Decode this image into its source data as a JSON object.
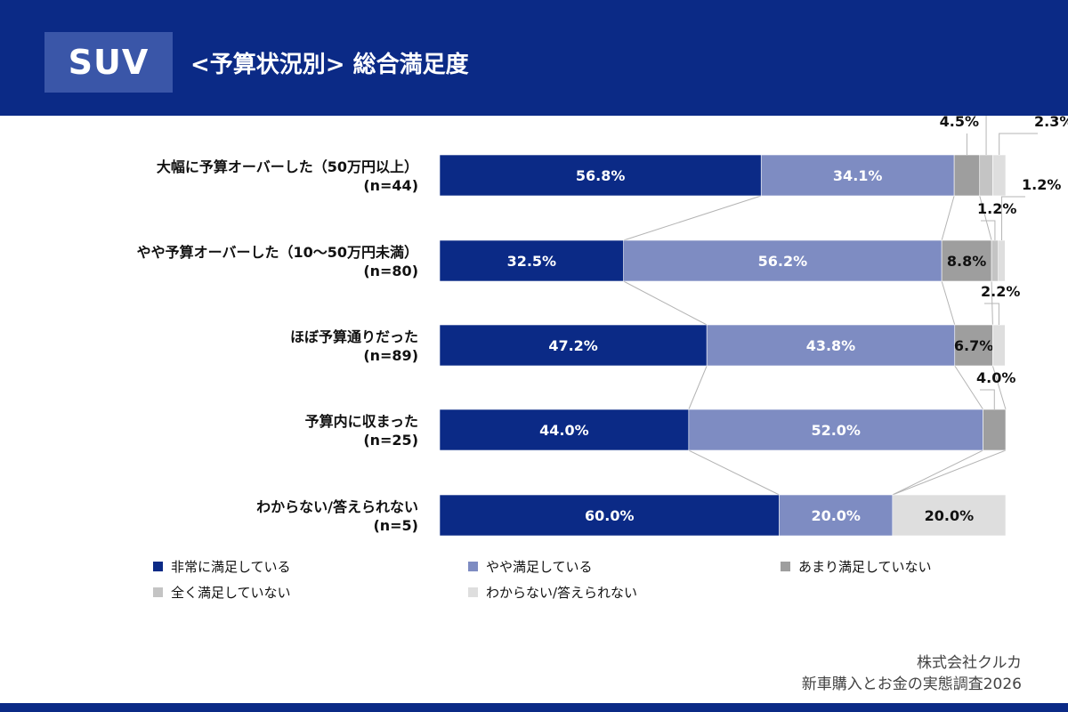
{
  "header": {
    "badge": "SUV",
    "title": "<予算状況別> 総合満足度"
  },
  "colors": {
    "header_bg": "#0b2a86",
    "series": [
      "#0b2a86",
      "#7e8cc2",
      "#9e9e9e",
      "#c4c4c4",
      "#dedede"
    ]
  },
  "chart_data": {
    "type": "bar",
    "orientation": "horizontal",
    "stacked": true,
    "percent": true,
    "title": "<予算状況別> 総合満足度",
    "categories": [
      "大幅に予算オーバーした（50万円以上）",
      "やや予算オーバーした（10〜50万円未満）",
      "ほぼ予算通りだった",
      "予算内に収まった",
      "わからない/答えられない"
    ],
    "sample_sizes": [
      "(n=44)",
      "(n=80)",
      "(n=89)",
      "(n=25)",
      "(n=5)"
    ],
    "series": [
      {
        "name": "非常に満足している",
        "values": [
          56.8,
          32.5,
          47.2,
          44.0,
          60.0
        ],
        "labels": [
          "56.8%",
          "32.5%",
          "47.2%",
          "44.0%",
          "60.0%"
        ]
      },
      {
        "name": "やや満足している",
        "values": [
          34.1,
          56.2,
          43.8,
          52.0,
          20.0
        ],
        "labels": [
          "34.1%",
          "56.2%",
          "43.8%",
          "52.0%",
          "20.0%"
        ]
      },
      {
        "name": "あまり満足していない",
        "values": [
          4.5,
          8.8,
          6.7,
          4.0,
          0
        ],
        "labels": [
          "4.5%",
          "8.8%",
          "6.7%",
          "4.0%",
          ""
        ]
      },
      {
        "name": "全く満足していない",
        "values": [
          2.3,
          1.2,
          0,
          0,
          0
        ],
        "labels": [
          "2.3%",
          "1.2%",
          "",
          "",
          ""
        ]
      },
      {
        "name": "わからない/答えられない",
        "values": [
          2.3,
          1.2,
          2.2,
          0,
          20.0
        ],
        "labels": [
          "2.3%",
          "1.2%",
          "2.2%",
          "",
          "20.0%"
        ]
      }
    ],
    "xlim": [
      0,
      100
    ],
    "legend_position": "bottom"
  },
  "footer": {
    "company": "株式会社クルカ",
    "survey": "新車購入とお金の実態調査2026"
  }
}
